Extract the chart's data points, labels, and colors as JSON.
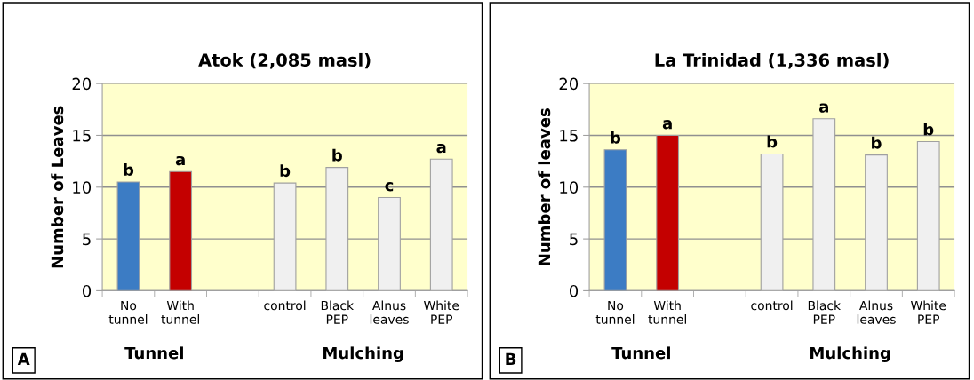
{
  "chart_data": [
    {
      "type": "bar",
      "title": "Atok (2,085 masl)",
      "ylabel": "Number of Leaves",
      "categories": [
        "No\ntunnel",
        "With\ntunnel",
        null,
        "control",
        "Black\nPEP",
        "Alnus\nleaves",
        "White\nPEP"
      ],
      "values": [
        10.5,
        11.5,
        null,
        10.4,
        11.9,
        9.0,
        12.7
      ],
      "value_labels": [
        "b",
        "a",
        null,
        "b",
        "b",
        "c",
        "a"
      ],
      "colors": [
        "#3c7cc4",
        "#c40000",
        "#ffffff",
        "#f0f0f0",
        "#f0f0f0",
        "#f0f0f0",
        "#f0f0f0"
      ],
      "ylim": [
        0,
        20
      ],
      "yticks": [
        0,
        5,
        10,
        15,
        20
      ],
      "grid": "y",
      "annotations": [
        "A",
        "Tunnel",
        "Mulching"
      ]
    },
    {
      "type": "bar",
      "title": "La Trinidad (1,336 masl)",
      "ylabel": "Number of leaves",
      "categories": [
        "No\ntunnel",
        "With\ntunnel",
        null,
        "control",
        "Black\nPEP",
        "Alnus\nleaves",
        "White\nPEP"
      ],
      "values": [
        13.6,
        15.0,
        null,
        13.2,
        16.6,
        13.1,
        14.4
      ],
      "value_labels": [
        "b",
        "a",
        null,
        "b",
        "a",
        "b",
        "b"
      ],
      "colors": [
        "#3c7cc4",
        "#c40000",
        "#ffffff",
        "#f0f0f0",
        "#f0f0f0",
        "#f0f0f0",
        "#f0f0f0"
      ],
      "ylim": [
        0,
        20
      ],
      "yticks": [
        0,
        5,
        10,
        15,
        20
      ],
      "grid": "y",
      "annotations": [
        "B",
        "Tunnel",
        "Mulching"
      ]
    }
  ]
}
